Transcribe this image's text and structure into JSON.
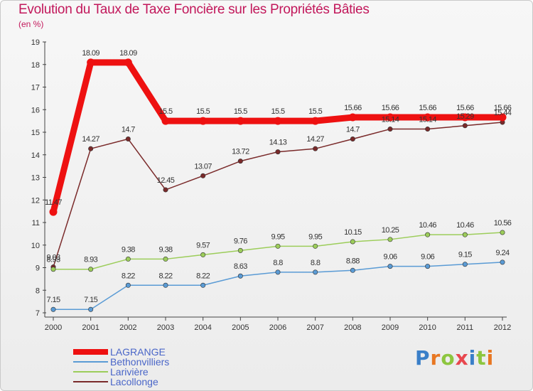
{
  "chart_data": {
    "type": "line",
    "title": "Evolution du Taux de Taxe Foncière sur les Propriétés Bâties",
    "subtitle": "(en %)",
    "x": [
      "2000",
      "2001",
      "2002",
      "2003",
      "2004",
      "2005",
      "2006",
      "2007",
      "2008",
      "2009",
      "2010",
      "2011",
      "2012"
    ],
    "ylim": [
      7,
      19
    ],
    "yticks": [
      7,
      8,
      9,
      10,
      11,
      12,
      13,
      14,
      15,
      16,
      17,
      18,
      19
    ],
    "series": [
      {
        "name": "LAGRANGE",
        "color": "#ee1111",
        "values": [
          11.47,
          18.09,
          18.09,
          15.5,
          15.5,
          15.5,
          15.5,
          15.5,
          15.66,
          15.66,
          15.66,
          15.66,
          15.66
        ],
        "labels": [
          "11.47",
          "18.09",
          "18.09",
          "15.5",
          "15.5",
          "15.5",
          "15.5",
          "15.5",
          "15.66",
          "15.66",
          "15.66",
          "15.66",
          "15.66"
        ]
      },
      {
        "name": "Bethonvilliers",
        "color": "#5a9bd5",
        "values": [
          7.15,
          7.15,
          8.22,
          8.22,
          8.22,
          8.63,
          8.8,
          8.8,
          8.88,
          9.06,
          9.06,
          9.15,
          9.24
        ],
        "labels": [
          "7.15",
          "7.15",
          "8.22",
          "8.22",
          "8.22",
          "8.63",
          "8.8",
          "8.8",
          "8.88",
          "9.06",
          "9.06",
          "9.15",
          "9.24"
        ]
      },
      {
        "name": "Larivière",
        "color": "#9ccd5a",
        "values": [
          8.93,
          8.93,
          9.38,
          9.38,
          9.57,
          9.76,
          9.95,
          9.95,
          10.15,
          10.25,
          10.46,
          10.46,
          10.56
        ],
        "labels": [
          "8.93",
          "8.93",
          "9.38",
          "9.38",
          "9.57",
          "9.76",
          "9.95",
          "9.95",
          "10.15",
          "10.25",
          "10.46",
          "10.46",
          "10.56"
        ]
      },
      {
        "name": "Lacollonge",
        "color": "#7a2a2a",
        "values": [
          9.03,
          14.27,
          14.7,
          12.45,
          13.07,
          13.72,
          14.13,
          14.27,
          14.7,
          15.14,
          15.14,
          15.29,
          15.44
        ],
        "labels": [
          "9.03",
          "14.27",
          "14.7",
          "12.45",
          "13.07",
          "13.72",
          "14.13",
          "14.27",
          "14.7",
          "15.14",
          "15.14",
          "15.29",
          "15.44"
        ]
      }
    ],
    "legend_position": "bottom-left",
    "grid": false
  },
  "brand": {
    "text": "Proxiti"
  }
}
